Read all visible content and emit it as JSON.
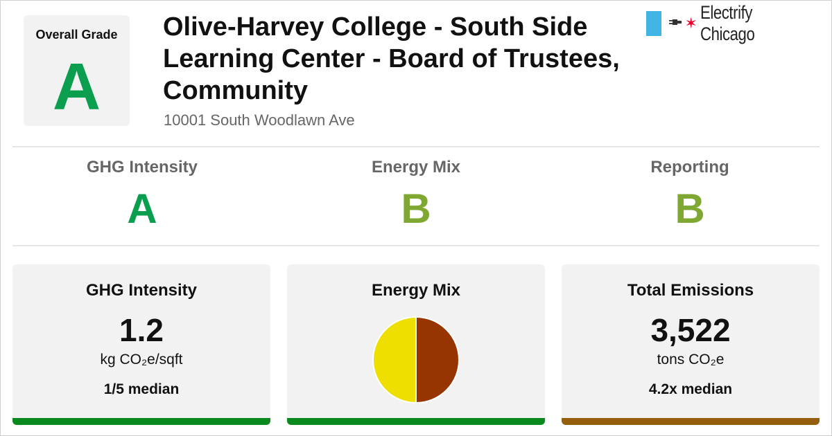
{
  "overall": {
    "label": "Overall Grade",
    "grade": "A",
    "color": "#0a9e4e"
  },
  "building": {
    "name": "Olive-Harvey College - South Side Learning Center - Board of Trustees, Community",
    "address": "10001 South Woodlawn Ave"
  },
  "logo": {
    "text": "Electrify Chicago",
    "plug_icon": "plug-icon",
    "star_icon": "chicago-star-icon",
    "flag_color": "#41b6e6",
    "star_color": "#e4002b"
  },
  "grades": [
    {
      "label": "GHG Intensity",
      "grade": "A",
      "color": "#0a9e4e"
    },
    {
      "label": "Energy Mix",
      "grade": "B",
      "color": "#7fa832"
    },
    {
      "label": "Reporting",
      "grade": "B",
      "color": "#7fa832"
    }
  ],
  "cards": {
    "ghg_intensity": {
      "title": "GHG Intensity",
      "value": "1.2",
      "unit": "kg CO₂e/sqft",
      "median": "1/5 median",
      "bar_color": "#0a8a1e"
    },
    "energy_mix": {
      "title": "Energy Mix",
      "bar_color": "#0a8a1e"
    },
    "total_emissions": {
      "title": "Total Emissions",
      "value": "3,522",
      "unit": "tons CO₂e",
      "median": "4.2x median",
      "bar_color": "#955e0c"
    }
  },
  "chart_data": {
    "type": "pie",
    "categories": [
      "",
      ""
    ],
    "values": [
      50,
      50
    ],
    "colors": [
      "#eedf00",
      "#973500"
    ],
    "title": ""
  }
}
